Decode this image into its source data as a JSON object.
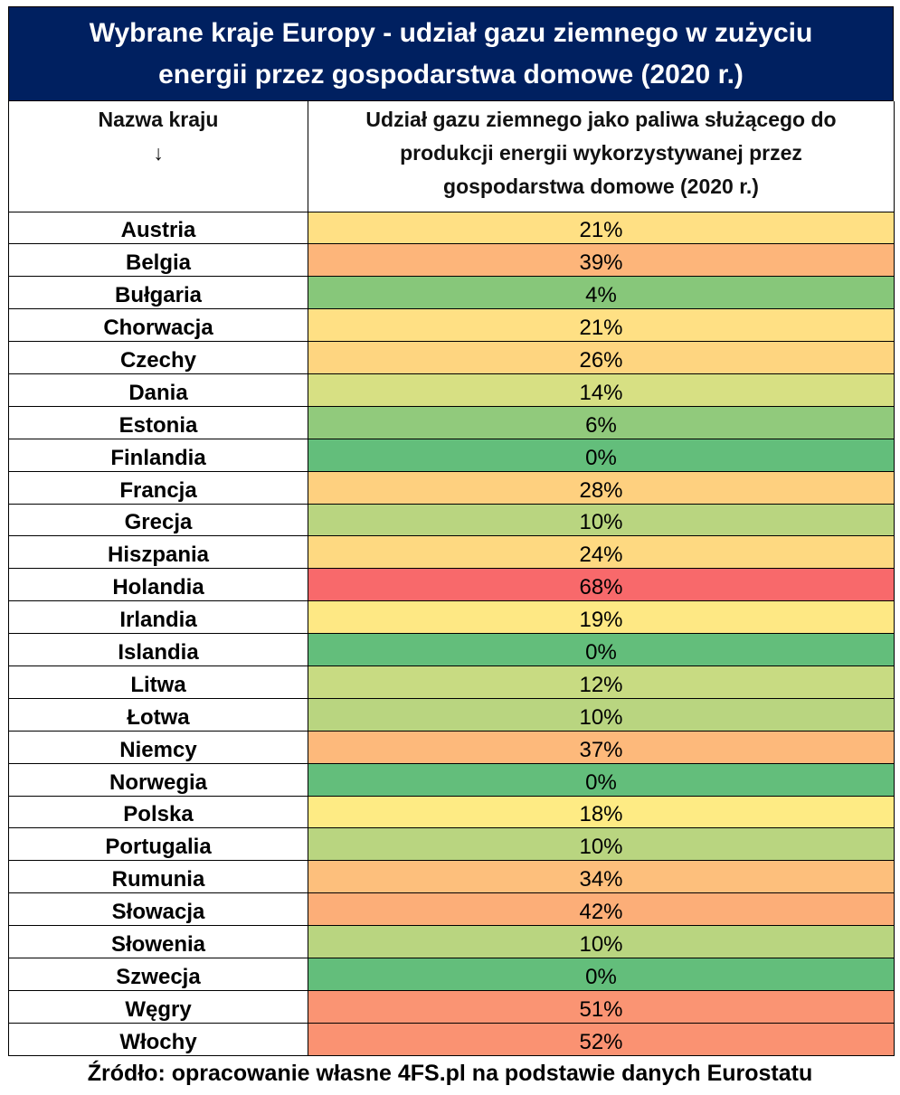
{
  "title_lines": [
    "Wybrane kraje Europy - udział gazu ziemnego w zużyciu",
    "energii przez gospodarstwa domowe (2020 r.)"
  ],
  "header": {
    "col1_lines": [
      "Nazwa kraju",
      "↓"
    ],
    "col2_lines": [
      "Udział gazu ziemnego jako paliwa służącego do",
      "produkcji energii wykorzystywanej przez",
      "gospodarstwa domowe (2020 r.)"
    ]
  },
  "footer": "Źródło: opracowanie własne 4FS.pl na podstawie danych Eurostatu",
  "chart_data": {
    "type": "table",
    "title": "Wybrane kraje Europy - udział gazu ziemnego w zużyciu energii przez gospodarstwa domowe (2020 r.)",
    "columns": [
      "Nazwa kraju",
      "Udział gazu ziemnego jako paliwa służącego do produkcji energii wykorzystywanej przez gospodarstwa domowe (2020 r.)"
    ],
    "rows": [
      {
        "country": "Austria",
        "value": 21,
        "label": "21%",
        "color": "#ffe084"
      },
      {
        "country": "Belgia",
        "value": 39,
        "label": "39%",
        "color": "#fdb57a"
      },
      {
        "country": "Bułgaria",
        "value": 4,
        "label": "4%",
        "color": "#87c77a"
      },
      {
        "country": "Chorwacja",
        "value": 21,
        "label": "21%",
        "color": "#ffe084"
      },
      {
        "country": "Czechy",
        "value": 26,
        "label": "26%",
        "color": "#fed580"
      },
      {
        "country": "Dania",
        "value": 14,
        "label": "14%",
        "color": "#d7e083"
      },
      {
        "country": "Estonia",
        "value": 6,
        "label": "6%",
        "color": "#91ca7c"
      },
      {
        "country": "Finlandia",
        "value": 0,
        "label": "0%",
        "color": "#63be7b"
      },
      {
        "country": "Francja",
        "value": 28,
        "label": "28%",
        "color": "#fed07f"
      },
      {
        "country": "Grecja",
        "value": 10,
        "label": "10%",
        "color": "#b9d580"
      },
      {
        "country": "Hiszpania",
        "value": 24,
        "label": "24%",
        "color": "#fed981"
      },
      {
        "country": "Holandia",
        "value": 68,
        "label": "68%",
        "color": "#f8696b"
      },
      {
        "country": "Irlandia",
        "value": 19,
        "label": "19%",
        "color": "#fee884"
      },
      {
        "country": "Islandia",
        "value": 0,
        "label": "0%",
        "color": "#63be7b"
      },
      {
        "country": "Litwa",
        "value": 12,
        "label": "12%",
        "color": "#c8db82"
      },
      {
        "country": "Łotwa",
        "value": 10,
        "label": "10%",
        "color": "#b9d580"
      },
      {
        "country": "Niemcy",
        "value": 37,
        "label": "37%",
        "color": "#fdb97b"
      },
      {
        "country": "Norwegia",
        "value": 0,
        "label": "0%",
        "color": "#63be7b"
      },
      {
        "country": "Polska",
        "value": 18,
        "label": "18%",
        "color": "#feeb84"
      },
      {
        "country": "Portugalia",
        "value": 10,
        "label": "10%",
        "color": "#b9d580"
      },
      {
        "country": "Rumunia",
        "value": 34,
        "label": "34%",
        "color": "#fdbf7c"
      },
      {
        "country": "Słowacja",
        "value": 42,
        "label": "42%",
        "color": "#fcae78"
      },
      {
        "country": "Słowenia",
        "value": 10,
        "label": "10%",
        "color": "#b9d580"
      },
      {
        "country": "Szwecja",
        "value": 0,
        "label": "0%",
        "color": "#63be7b"
      },
      {
        "country": "Węgry",
        "value": 51,
        "label": "51%",
        "color": "#fa9473"
      },
      {
        "country": "Włochy",
        "value": 52,
        "label": "52%",
        "color": "#fa9272"
      }
    ]
  }
}
